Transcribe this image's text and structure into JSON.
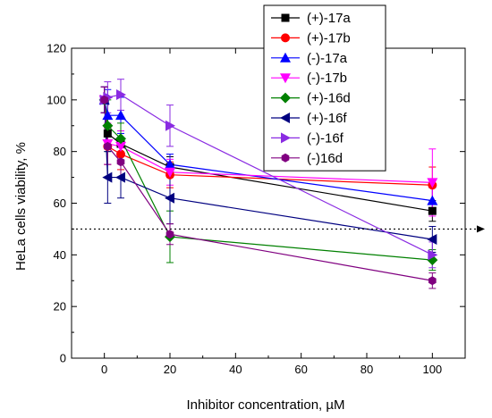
{
  "chart_data": {
    "type": "line",
    "xlabel": "Inhibitor concentration, µM",
    "ylabel": "HeLa cells viability, %",
    "xlim": [
      -10,
      110
    ],
    "ylim": [
      0,
      120
    ],
    "x_ticks": [
      0,
      20,
      40,
      60,
      80,
      100
    ],
    "y_ticks": [
      0,
      20,
      40,
      60,
      80,
      100,
      120
    ],
    "x_tick_labels": [
      "0",
      "20",
      "40",
      "60",
      "80",
      "100"
    ],
    "y_tick_labels": [
      "0",
      "20",
      "40",
      "60",
      "80",
      "100",
      "120"
    ],
    "reference_line": {
      "y": 50,
      "style": "dotted",
      "arrow": "right"
    },
    "legend_position": "top-right",
    "grid": false,
    "x": [
      0,
      1,
      5,
      20,
      100
    ],
    "series": [
      {
        "name": "(+)-17a",
        "color": "#000000",
        "marker": "square",
        "values": [
          100,
          87,
          83,
          74,
          57
        ],
        "errors": [
          5,
          6,
          5,
          4,
          4
        ]
      },
      {
        "name": "(+)-17b",
        "color": "#ff0000",
        "marker": "circle",
        "values": [
          100,
          82,
          79,
          71,
          67
        ],
        "errors": [
          5,
          7,
          6,
          5,
          7
        ]
      },
      {
        "name": "(-)-17a",
        "color": "#0000ff",
        "marker": "triangle-up",
        "values": [
          100,
          94,
          94,
          75,
          61
        ],
        "errors": [
          5,
          10,
          7,
          4,
          5
        ]
      },
      {
        "name": "(-)-17b",
        "color": "#ff00ff",
        "marker": "triangle-down",
        "values": [
          100,
          83,
          82,
          72,
          68
        ],
        "errors": [
          5,
          8,
          6,
          5,
          13
        ]
      },
      {
        "name": "(+)-16d",
        "color": "#008000",
        "marker": "diamond",
        "values": [
          100,
          90,
          85,
          47,
          38
        ],
        "errors": [
          5,
          10,
          6,
          10,
          4
        ]
      },
      {
        "name": "(+)-16f",
        "color": "#000080",
        "marker": "triangle-left",
        "values": [
          100,
          70,
          70,
          62,
          46
        ],
        "errors": [
          5,
          10,
          8,
          10,
          5
        ]
      },
      {
        "name": "(-)-16f",
        "color": "#8a2be2",
        "marker": "triangle-right",
        "values": [
          100,
          101,
          102,
          90,
          40
        ],
        "errors": [
          5,
          6,
          6,
          8,
          5
        ]
      },
      {
        "name": "(-)16d",
        "color": "#800080",
        "marker": "hexagon",
        "values": [
          100,
          82,
          76,
          48,
          30
        ],
        "errors": [
          5,
          7,
          6,
          4,
          3
        ]
      }
    ]
  }
}
